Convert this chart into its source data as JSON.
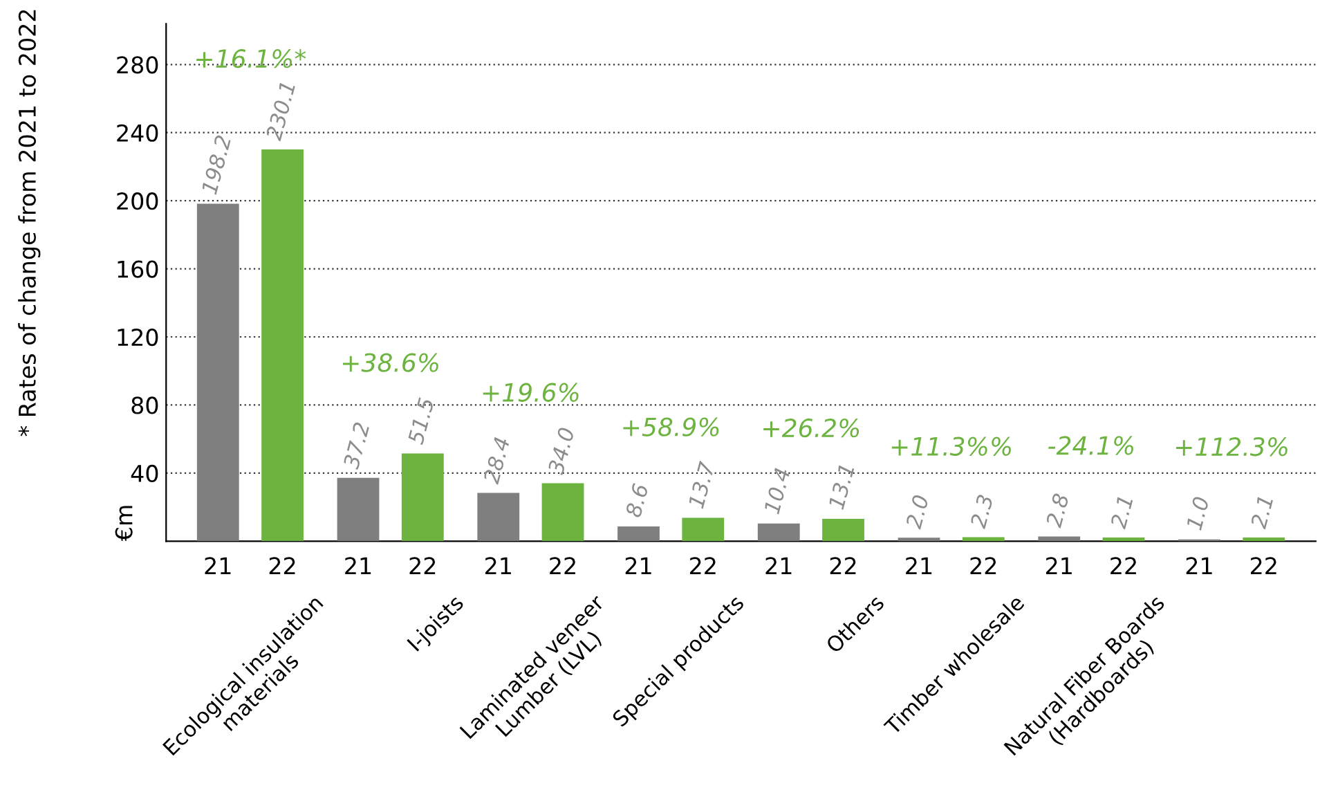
{
  "chart_data": {
    "type": "bar",
    "ylabel": "€m",
    "categories": [
      "Ecological insulation\nmaterials",
      "I-joists",
      "Laminated veneer\nLumber (LVL)",
      "Special products",
      "Others",
      "Timber wholesale",
      "Natural Fiber Boards\n(Hardboards)",
      null
    ],
    "series": [
      {
        "name": "21",
        "color": "#7f7f7f",
        "values": [
          198.2,
          37.2,
          28.4,
          8.6,
          10.4,
          2.0,
          2.8,
          1.0
        ],
        "value_labels": [
          "198.2",
          "37.2",
          "28.4",
          "8.6",
          "10.4",
          "2.0",
          "2.8",
          "1.0"
        ]
      },
      {
        "name": "22",
        "color": "#6db33f",
        "values": [
          230.1,
          51.5,
          34.0,
          13.7,
          13.1,
          2.3,
          2.1,
          2.1
        ],
        "value_labels": [
          "230.1",
          "51.5",
          "34.0",
          "13.7",
          "13.1",
          "2.3",
          "2.1",
          "2.1"
        ]
      }
    ],
    "ylim": [
      0,
      304
    ],
    "yticks": [
      40,
      80,
      120,
      160,
      200,
      240,
      280
    ],
    "grid": "y",
    "annotations": [
      "+16.1%*",
      "+38.6%",
      "+19.6%",
      "+58.9%",
      "+26.2%",
      "+11.3%%",
      "-24.1%",
      "+112.3%",
      "* Rates of change from 2021 to 2022"
    ]
  }
}
